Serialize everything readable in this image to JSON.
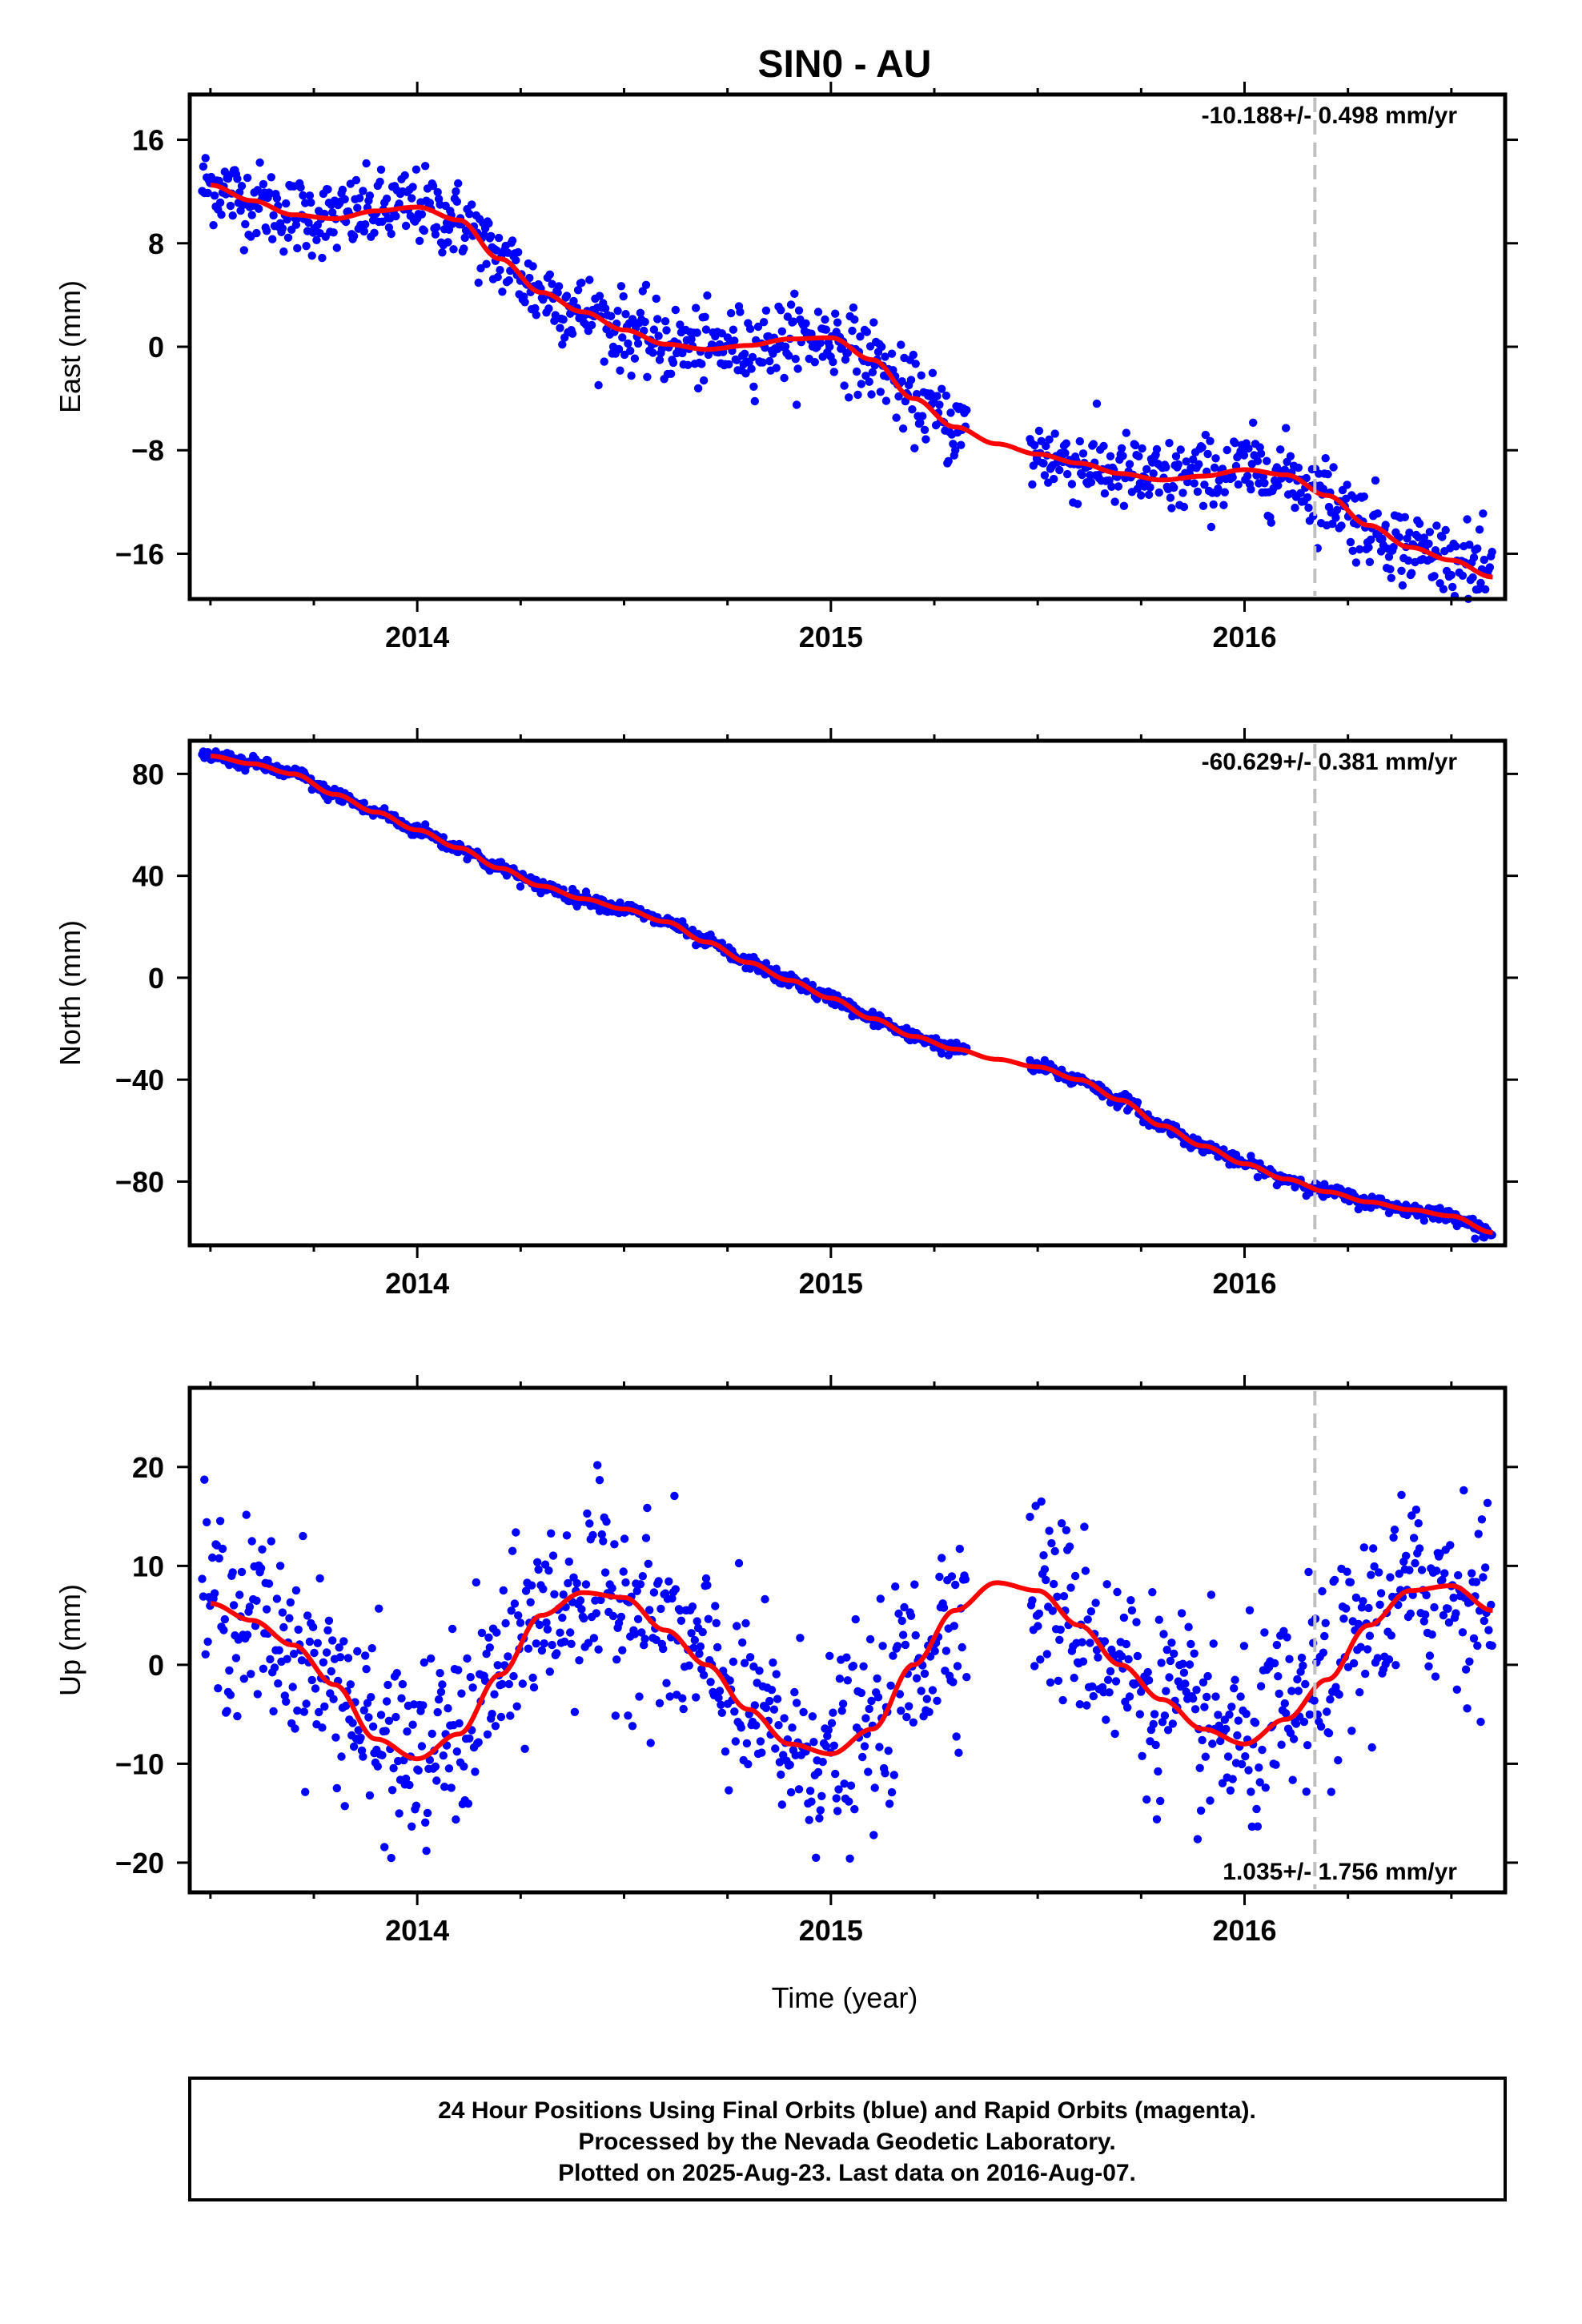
{
  "title": "SIN0 - AU",
  "x_axis_label": "Time (year)",
  "footer": {
    "line1": "24 Hour Positions Using Final Orbits (blue) and Rapid Orbits (magenta).",
    "line2": "Processed by the Nevada Geodetic Laboratory.",
    "line3": "Plotted on 2025-Aug-23. Last data on 2016-Aug-07."
  },
  "colors": {
    "points": "#0000ff",
    "fit": "#ff0000",
    "event_line": "#c0c0c0",
    "frame": "#000000"
  },
  "chart_data": [
    {
      "type": "scatter",
      "name": "east",
      "ylabel": "East (mm)",
      "rate_label": "-10.188+/- 0.498 mm/yr",
      "rate_position": "top-right",
      "xlim": [
        2013.45,
        2016.63
      ],
      "ylim": [
        -19.5,
        19.5
      ],
      "x_ticks": [
        2014,
        2015,
        2016
      ],
      "y_ticks": [
        16,
        8,
        0,
        -8,
        -16
      ],
      "y_tick_labels": [
        "16",
        "8",
        "0",
        "−8",
        "−16"
      ],
      "event_line_x": 2016.17,
      "fit_curve": {
        "x": [
          2013.5,
          2013.6,
          2013.7,
          2013.8,
          2013.9,
          2014.0,
          2014.1,
          2014.2,
          2014.3,
          2014.4,
          2014.5,
          2014.6,
          2014.7,
          2014.8,
          2014.9,
          2015.0,
          2015.1,
          2015.2,
          2015.3,
          2015.4,
          2015.5,
          2015.6,
          2015.7,
          2015.8,
          2015.9,
          2016.0,
          2016.1,
          2016.2,
          2016.3,
          2016.4,
          2016.5,
          2016.6
        ],
        "y": [
          12.5,
          11.3,
          10.2,
          9.9,
          10.5,
          10.8,
          9.8,
          6.8,
          4.2,
          2.7,
          1.3,
          0.2,
          -0.2,
          0.1,
          0.6,
          0.7,
          -1.0,
          -4.0,
          -6.2,
          -7.5,
          -8.3,
          -9.0,
          -9.8,
          -10.3,
          -10.0,
          -9.5,
          -9.9,
          -11.5,
          -13.8,
          -15.5,
          -16.5,
          -17.8
        ]
      },
      "points_scatter_mm": 1.5,
      "gaps": [
        [
          2015.33,
          2015.48
        ]
      ]
    },
    {
      "type": "scatter",
      "name": "north",
      "ylabel": "North (mm)",
      "rate_label": "-60.629+/- 0.381 mm/yr",
      "rate_position": "top-right",
      "xlim": [
        2013.45,
        2016.63
      ],
      "ylim": [
        -105,
        93
      ],
      "x_ticks": [
        2014,
        2015,
        2016
      ],
      "y_ticks": [
        80,
        40,
        0,
        -40,
        -80
      ],
      "y_tick_labels": [
        "80",
        "40",
        "0",
        "−40",
        "−80"
      ],
      "event_line_x": 2016.17,
      "fit_curve": {
        "x": [
          2013.5,
          2013.6,
          2013.7,
          2013.8,
          2013.9,
          2014.0,
          2014.1,
          2014.2,
          2014.3,
          2014.4,
          2014.5,
          2014.6,
          2014.7,
          2014.8,
          2014.9,
          2015.0,
          2015.1,
          2015.2,
          2015.3,
          2015.4,
          2015.5,
          2015.6,
          2015.7,
          2015.8,
          2015.9,
          2016.0,
          2016.1,
          2016.2,
          2016.3,
          2016.4,
          2016.5,
          2016.6
        ],
        "y": [
          87,
          84,
          80,
          72,
          65,
          58,
          51,
          43,
          36,
          31,
          27,
          22,
          14,
          6,
          -1,
          -8,
          -16,
          -23,
          -28,
          -32,
          -35,
          -40,
          -48,
          -58,
          -66,
          -73,
          -79,
          -84,
          -88,
          -91,
          -93.5,
          -100
        ]
      },
      "points_scatter_mm": 1.3,
      "gaps": [
        [
          2015.33,
          2015.48
        ]
      ]
    },
    {
      "type": "scatter",
      "name": "up",
      "ylabel": "Up (mm)",
      "rate_label": "1.035+/- 1.756 mm/yr",
      "rate_position": "bottom-right",
      "xlim": [
        2013.45,
        2016.63
      ],
      "ylim": [
        -23,
        28
      ],
      "x_ticks": [
        2014,
        2015,
        2016
      ],
      "y_ticks": [
        20,
        10,
        0,
        -10,
        -20
      ],
      "y_tick_labels": [
        "20",
        "10",
        "0",
        "−10",
        "−20"
      ],
      "event_line_x": 2016.17,
      "fit_curve": {
        "x": [
          2013.5,
          2013.6,
          2013.7,
          2013.8,
          2013.9,
          2014.0,
          2014.1,
          2014.2,
          2014.3,
          2014.4,
          2014.5,
          2014.6,
          2014.7,
          2014.8,
          2014.9,
          2015.0,
          2015.1,
          2015.2,
          2015.3,
          2015.4,
          2015.5,
          2015.6,
          2015.7,
          2015.8,
          2015.9,
          2016.0,
          2016.1,
          2016.2,
          2016.3,
          2016.4,
          2016.5,
          2016.6
        ],
        "y": [
          6.2,
          4.5,
          2.0,
          -2.0,
          -7.5,
          -9.5,
          -7.0,
          -1.0,
          5.0,
          7.3,
          6.8,
          3.5,
          0.0,
          -4.5,
          -8.0,
          -9.0,
          -6.5,
          0.0,
          5.5,
          8.3,
          7.5,
          4.0,
          0.0,
          -3.5,
          -6.5,
          -8.0,
          -5.5,
          -1.5,
          4.0,
          7.5,
          8.0,
          5.5
        ]
      },
      "points_scatter_mm": 4.8,
      "gaps": [
        [
          2015.33,
          2015.48
        ]
      ]
    }
  ]
}
